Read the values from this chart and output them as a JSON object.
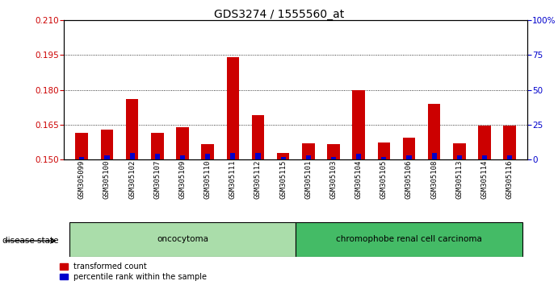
{
  "title": "GDS3274 / 1555560_at",
  "samples": [
    "GSM305099",
    "GSM305100",
    "GSM305102",
    "GSM305107",
    "GSM305109",
    "GSM305110",
    "GSM305111",
    "GSM305112",
    "GSM305115",
    "GSM305101",
    "GSM305103",
    "GSM305104",
    "GSM305105",
    "GSM305106",
    "GSM305108",
    "GSM305113",
    "GSM305114",
    "GSM305116"
  ],
  "red_values": [
    0.1615,
    0.163,
    0.176,
    0.1615,
    0.164,
    0.1565,
    0.194,
    0.169,
    0.153,
    0.157,
    0.1565,
    0.18,
    0.1575,
    0.1595,
    0.174,
    0.157,
    0.1645,
    0.1645
  ],
  "blue_values": [
    2,
    3,
    5,
    4,
    3,
    4,
    5,
    5,
    2,
    3,
    2,
    4,
    2,
    3,
    5,
    3,
    3,
    3
  ],
  "ylim_left": [
    0.15,
    0.21
  ],
  "ylim_right": [
    0,
    100
  ],
  "yticks_left": [
    0.15,
    0.165,
    0.18,
    0.195,
    0.21
  ],
  "yticks_right": [
    0,
    25,
    50,
    75,
    100
  ],
  "ytick_labels_right": [
    "0",
    "25",
    "50",
    "75",
    "100%"
  ],
  "hlines": [
    0.165,
    0.18,
    0.195
  ],
  "disease_groups": [
    {
      "label": "oncocytoma",
      "start": 0,
      "end": 9,
      "color": "#AADDAA"
    },
    {
      "label": "chromophobe renal cell carcinoma",
      "start": 9,
      "end": 18,
      "color": "#44BB66"
    }
  ],
  "disease_state_label": "disease state",
  "bar_width": 0.5,
  "red_color": "#CC0000",
  "blue_color": "#0000CC",
  "bg_color": "#FFFFFF",
  "title_fontsize": 10,
  "axis_label_color_left": "#CC0000",
  "axis_label_color_right": "#0000CC"
}
